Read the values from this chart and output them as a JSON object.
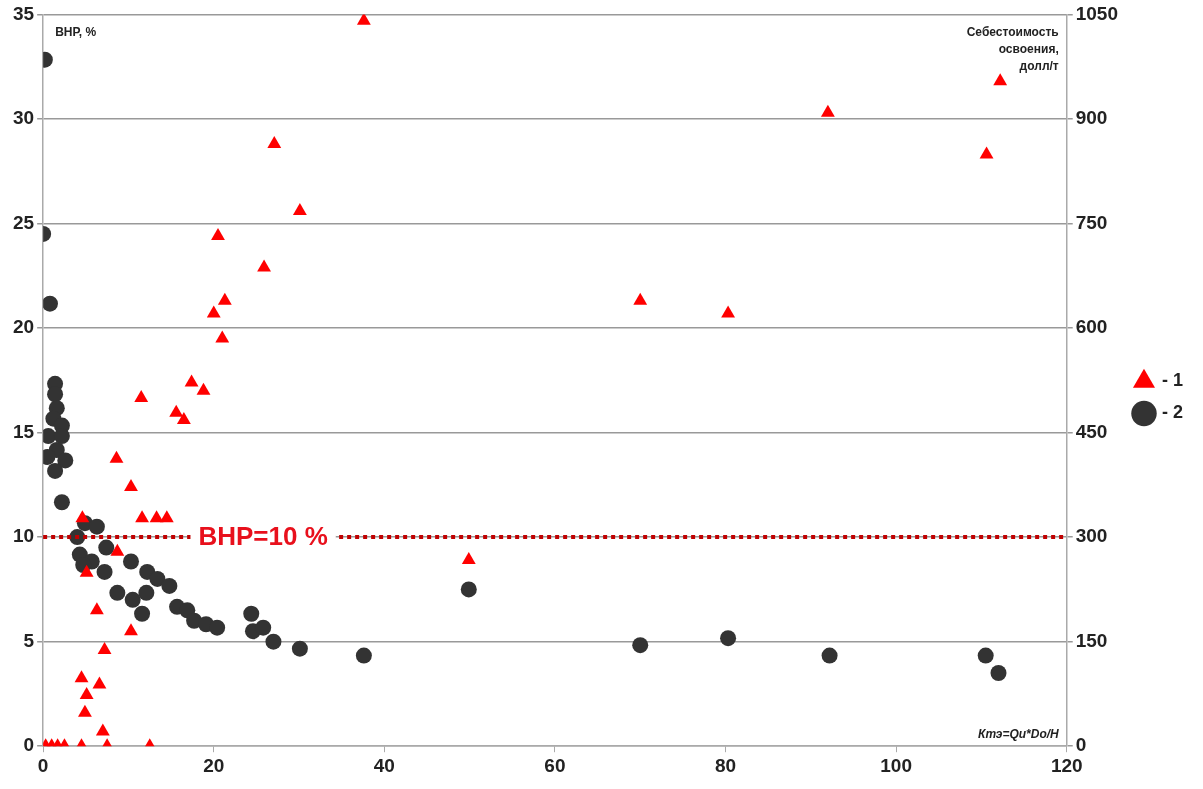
{
  "chart_data": {
    "type": "scatter",
    "ylabel": "ВНР, %",
    "y2label": "Себестоимость\nосвоения,\nдолл/т",
    "xlabel": "Ктэ=Qи*Dо/Н",
    "xlim": [
      0,
      120
    ],
    "xticks": [
      0,
      20,
      40,
      60,
      80,
      100,
      120
    ],
    "ylim": [
      0,
      35
    ],
    "yticks": [
      0,
      5,
      10,
      15,
      20,
      25,
      30,
      35
    ],
    "y2lim": [
      0,
      1050
    ],
    "y2ticks": [
      0,
      150,
      300,
      450,
      600,
      750,
      900,
      1050
    ],
    "grid": "y",
    "legend": "right",
    "ref_lines": [
      {
        "axis": "y",
        "value": 10,
        "label": "ВНР=10 %",
        "color": "#c00000",
        "line_style": "dotted"
      }
    ],
    "series": [
      {
        "name": "- 1",
        "color": "#ff0000",
        "marker": "triangle",
        "x": [
          0.3,
          1,
          1.7,
          2.5,
          4.5,
          7.5,
          12.5,
          7,
          4.5,
          6.6,
          5.1,
          4.9,
          7.2,
          6.3,
          10.3,
          8.7,
          4.6,
          5.1,
          8.6,
          10.3,
          11.6,
          13.3,
          14.5,
          11.5,
          15.6,
          16.5,
          17.4,
          18.8,
          20,
          20.5,
          21.3,
          21,
          25.9,
          27.1,
          30.1,
          37.6,
          49.9,
          70,
          80.3,
          92,
          110.6,
          112.2
        ],
        "values": [
          0,
          0,
          0,
          0,
          0,
          0,
          0,
          0.7,
          3.25,
          2.95,
          2.45,
          1.6,
          4.6,
          6.5,
          5.5,
          9.3,
          10.9,
          8.3,
          13.75,
          12.4,
          10.9,
          10.9,
          10.9,
          16.65,
          15.95,
          15.6,
          17.4,
          17,
          20.7,
          24.4,
          21.3,
          19.5,
          22.9,
          28.8,
          25.6,
          34.7,
          8.9,
          21.3,
          20.7,
          30.3,
          28.3,
          31.8
        ]
      },
      {
        "name": "- 2",
        "color": "#333333",
        "marker": "circle",
        "axis": "y2",
        "x": [
          0.2,
          0,
          0.8,
          1.4,
          1.4,
          1.6,
          1.2,
          2.2,
          0.6,
          2.2,
          1.6,
          0.5,
          2.6,
          1.4,
          2.2,
          4.9,
          6.3,
          4,
          6.9,
          7.4,
          4.3,
          5.7,
          4.7,
          7.2,
          10.3,
          12.2,
          13.4,
          14.8,
          8.7,
          10.5,
          12.1,
          11.6,
          15.7,
          16.9,
          17.7,
          19.1,
          20.4,
          24.4,
          24.6,
          25.8,
          27,
          30.1,
          37.6,
          49.9,
          70,
          80.3,
          92.2,
          110.5,
          112
        ],
        "values": [
          985,
          735,
          635,
          520,
          505,
          485,
          470,
          460,
          445,
          445,
          425,
          415,
          410,
          395,
          350,
          320,
          315,
          300,
          null,
          285,
          275,
          265,
          260,
          250,
          265,
          250,
          240,
          230,
          220,
          210,
          220,
          190,
          200,
          195,
          180,
          175,
          170,
          190,
          165,
          170,
          150,
          140,
          130,
          225,
          145,
          155,
          130,
          130,
          105
        ]
      }
    ]
  }
}
